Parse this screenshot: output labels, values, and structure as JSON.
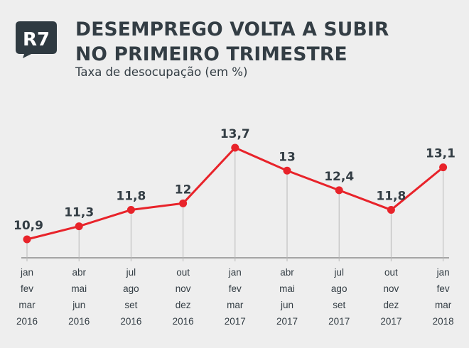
{
  "brand": {
    "logo_text": "R7",
    "accent": "#333d44",
    "logo_color": "#2f3a41"
  },
  "header": {
    "title_lines": [
      "DESEMPREGO VOLTA A SUBIR",
      "NO PRIMEIRO TRIMESTRE"
    ],
    "subtitle": "Taxa de desocupação (em %)"
  },
  "chart_data": {
    "type": "line",
    "title": "DESEMPREGO VOLTA A SUBIR NO PRIMEIRO TRIMESTRE",
    "subtitle": "Taxa de desocupação (em %)",
    "categories": [
      [
        "jan",
        "fev",
        "mar",
        "2016"
      ],
      [
        "abr",
        "mai",
        "jun",
        "2016"
      ],
      [
        "jul",
        "ago",
        "set",
        "2016"
      ],
      [
        "out",
        "nov",
        "dez",
        "2016"
      ],
      [
        "jan",
        "fev",
        "mar",
        "2017"
      ],
      [
        "abr",
        "mai",
        "jun",
        "2017"
      ],
      [
        "jul",
        "ago",
        "set",
        "2017"
      ],
      [
        "out",
        "nov",
        "dez",
        "2017"
      ],
      [
        "jan",
        "fev",
        "mar",
        "2018"
      ]
    ],
    "values": [
      10.9,
      11.3,
      11.8,
      12,
      13.7,
      13,
      12.4,
      11.8,
      13.1
    ],
    "value_labels": [
      "10,9",
      "11,3",
      "11,8",
      "12",
      "13,7",
      "13",
      "12,4",
      "11,8",
      "13,1"
    ],
    "xlabel": "",
    "ylabel": "",
    "ylim": [
      10,
      14.5
    ],
    "grid": false,
    "line_color": "#e8232a",
    "guide_color": "#b8b8b8",
    "axis_color": "#777777"
  }
}
